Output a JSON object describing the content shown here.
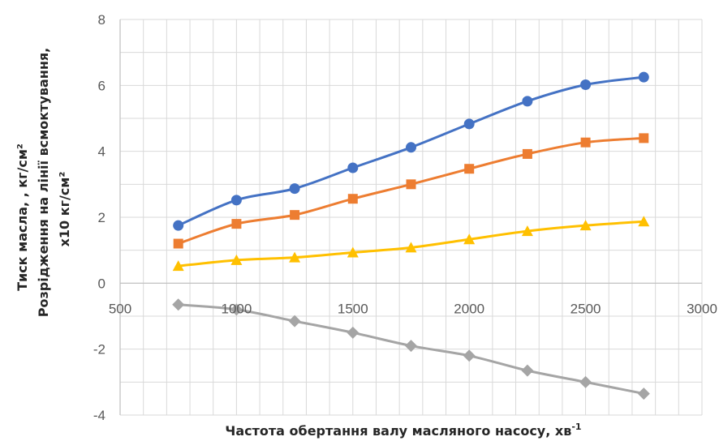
{
  "chart_data": {
    "type": "line",
    "title": "",
    "xlabel": "Частота обертання валу масляного насосу, хв",
    "xlabel_sup": "-1",
    "ylabel_line1": "Тиск масла, , кг/см²",
    "ylabel_line2": "Розрідження на лінії всмоктування,",
    "ylabel_line3": "х10 кг/см²",
    "xlim": [
      500,
      3000
    ],
    "ylim": [
      -4,
      8
    ],
    "x_ticks": [
      500,
      1000,
      1500,
      2000,
      2500,
      3000
    ],
    "y_ticks": [
      -4,
      -2,
      0,
      2,
      4,
      6,
      8
    ],
    "grid": true,
    "x": [
      750,
      1000,
      1250,
      1500,
      1750,
      2000,
      2250,
      2500,
      2750
    ],
    "series": [
      {
        "color": "#4472C4",
        "marker": "circle",
        "values": [
          1.75,
          2.52,
          2.87,
          3.5,
          4.12,
          4.83,
          5.52,
          6.02,
          6.25
        ]
      },
      {
        "color": "#ED7D31",
        "marker": "square",
        "values": [
          1.2,
          1.8,
          2.07,
          2.56,
          3.0,
          3.47,
          3.92,
          4.27,
          4.4
        ]
      },
      {
        "color": "#FFC000",
        "marker": "triangle",
        "values": [
          0.52,
          0.7,
          0.78,
          0.93,
          1.08,
          1.33,
          1.58,
          1.75,
          1.87
        ]
      },
      {
        "color": "#A5A5A5",
        "marker": "diamond",
        "values": [
          -0.65,
          -0.8,
          -1.15,
          -1.5,
          -1.9,
          -2.2,
          -2.65,
          -3.0,
          -3.35
        ]
      }
    ]
  }
}
